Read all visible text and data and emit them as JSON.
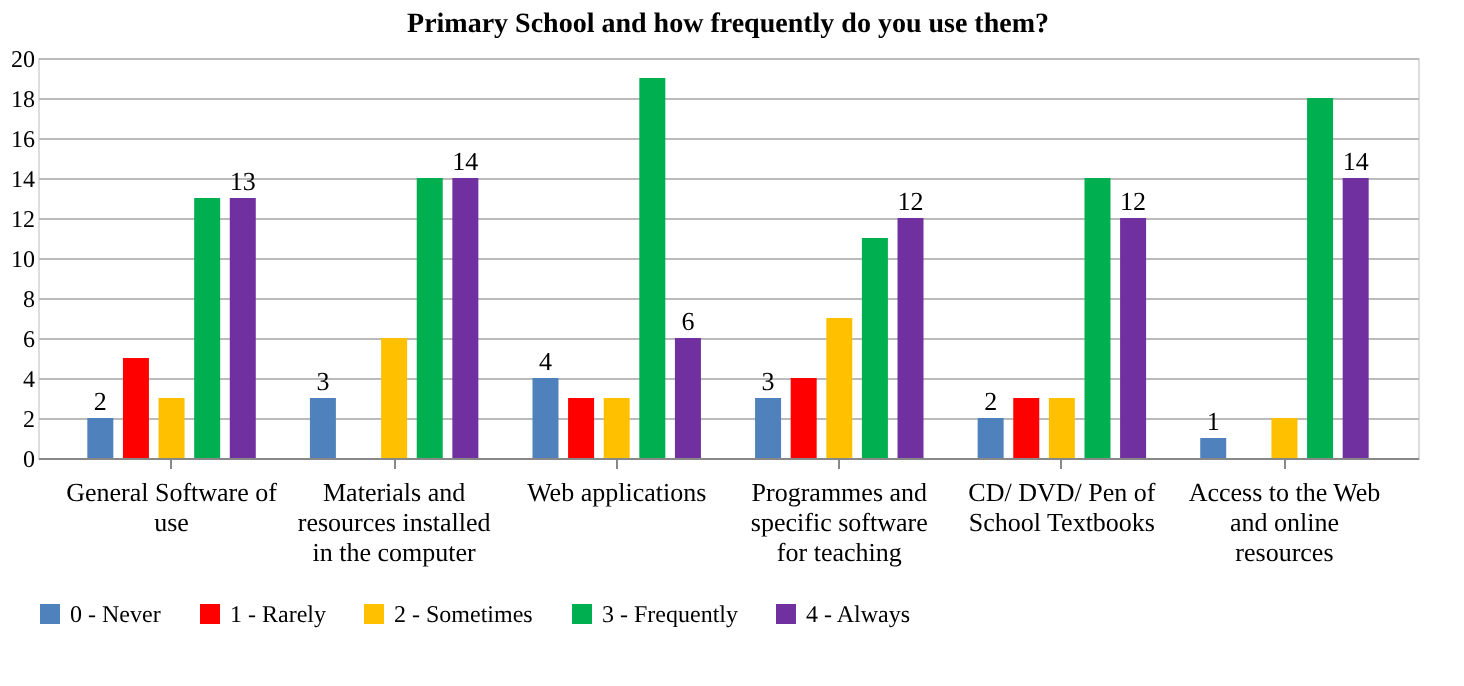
{
  "chart_data": {
    "type": "bar",
    "title": "Primary School and how frequently do you use them?",
    "categories": [
      "General Software of use",
      "Materials and resources installed in the computer",
      "Web applications",
      "Programmes and specific software for teaching",
      "CD/ DVD/ Pen of School Textbooks",
      "Access to the Web and online resources"
    ],
    "series": [
      {
        "name": "0 - Never",
        "color": "#4f81bd",
        "values": [
          2,
          3,
          4,
          3,
          2,
          1
        ],
        "value_labels": [
          "2",
          "3",
          "4",
          "3",
          "2",
          "1"
        ]
      },
      {
        "name": "1 - Rarely",
        "color": "#ff0000",
        "values": [
          5,
          0,
          3,
          4,
          3,
          0
        ],
        "value_labels": [
          null,
          null,
          null,
          null,
          null,
          null
        ]
      },
      {
        "name": "2 - Sometimes",
        "color": "#ffc000",
        "values": [
          3,
          6,
          3,
          7,
          3,
          2
        ],
        "value_labels": [
          null,
          null,
          null,
          null,
          null,
          null
        ]
      },
      {
        "name": "3 - Frequently",
        "color": "#00b050",
        "values": [
          13,
          14,
          19,
          11,
          14,
          18
        ],
        "value_labels": [
          null,
          null,
          null,
          null,
          null,
          null
        ]
      },
      {
        "name": "4 - Always",
        "color": "#7030a0",
        "values": [
          13,
          14,
          6,
          12,
          12,
          14
        ],
        "value_labels": [
          "13",
          "14",
          "6",
          "12",
          "12",
          "14"
        ]
      }
    ],
    "ylim": [
      0,
      20
    ],
    "yticks": [
      0,
      2,
      4,
      6,
      8,
      10,
      12,
      14,
      16,
      18,
      20
    ],
    "grid": "y",
    "legend": "bottom"
  }
}
